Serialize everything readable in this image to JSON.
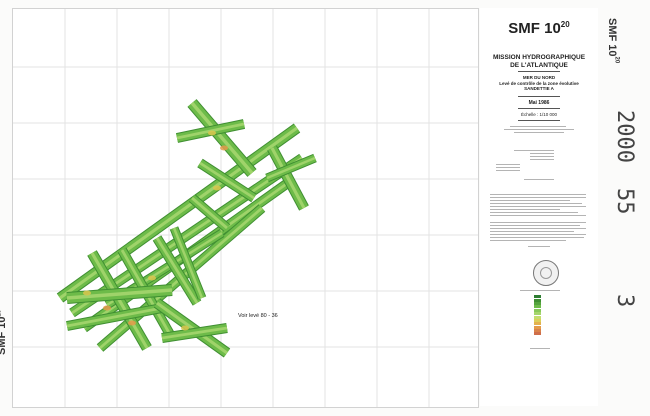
{
  "sheet": {
    "title": "SMF 10",
    "title_exponent": "20",
    "org_line1": "MISSION HYDROGRAPHIQUE",
    "org_line2": "DE L'ATLANTIQUE",
    "region_line1": "MER DU NORD",
    "region_line2": "Levé de contrôle de la zone évolutive",
    "region_line3": "SANDETTIE A",
    "date": "Mai 1986",
    "scale": "Échelle : 1/10 000"
  },
  "map": {
    "note": "Voir levé 80 - 36",
    "colors": {
      "band_base": "#6dbb49",
      "band_dark": "#3f8f32",
      "band_light": "#9fd36a",
      "band_shallow": "#d9c64d",
      "band_peak": "#e39a4a"
    }
  },
  "margin": {
    "edge_title": "SMF 10",
    "edge_exponent": "20",
    "stamp_year": "2000",
    "stamp_num1": "55",
    "stamp_num2": "3"
  },
  "legend": {
    "colors": [
      "#2e7d32",
      "#3f8f32",
      "#55a33e",
      "#6dbb49",
      "#88c95a",
      "#a5d56c",
      "#c4dd6f",
      "#dccf5a",
      "#e3b24e",
      "#e39a4a",
      "#d9824a",
      "#cf6e4a"
    ]
  }
}
